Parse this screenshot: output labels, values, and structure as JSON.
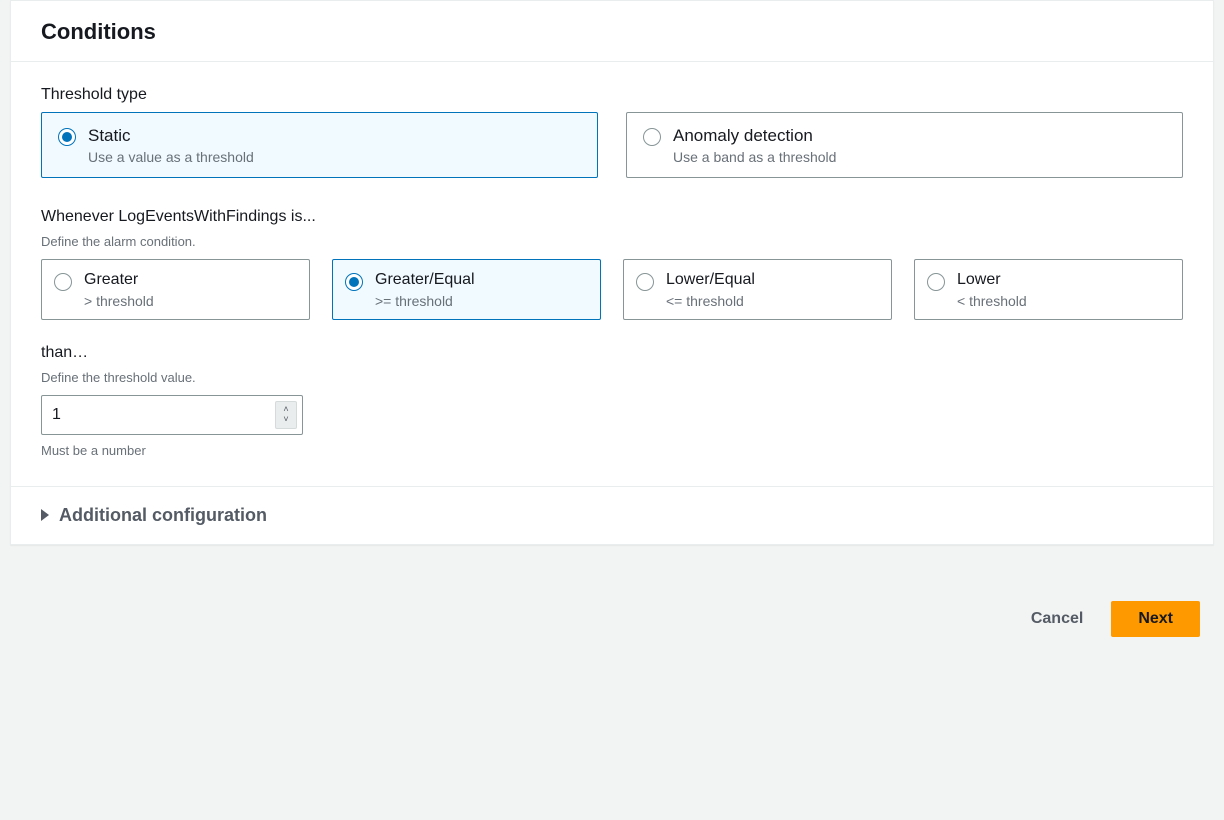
{
  "colors": {
    "accent": "#0073bb",
    "primary_button": "#ff9900",
    "text": "#16191f",
    "muted": "#687078",
    "border": "#879596",
    "panel_border": "#eaeded",
    "page_bg": "#f2f3f3",
    "selected_bg": "#f1faff"
  },
  "panel": {
    "title": "Conditions"
  },
  "threshold_type": {
    "label": "Threshold type",
    "options": [
      {
        "title": "Static",
        "desc": "Use a value as a threshold",
        "selected": true
      },
      {
        "title": "Anomaly detection",
        "desc": "Use a band as a threshold",
        "selected": false
      }
    ]
  },
  "condition": {
    "label": "Whenever LogEventsWithFindings is...",
    "hint": "Define the alarm condition.",
    "options": [
      {
        "title": "Greater",
        "desc": "> threshold",
        "selected": false
      },
      {
        "title": "Greater/Equal",
        "desc": ">= threshold",
        "selected": true
      },
      {
        "title": "Lower/Equal",
        "desc": "<= threshold",
        "selected": false
      },
      {
        "title": "Lower",
        "desc": "< threshold",
        "selected": false
      }
    ]
  },
  "threshold_value": {
    "label": "than…",
    "hint": "Define the threshold value.",
    "value": "1",
    "after_hint": "Must be a number"
  },
  "expander": {
    "label": "Additional configuration"
  },
  "footer": {
    "cancel": "Cancel",
    "next": "Next"
  }
}
